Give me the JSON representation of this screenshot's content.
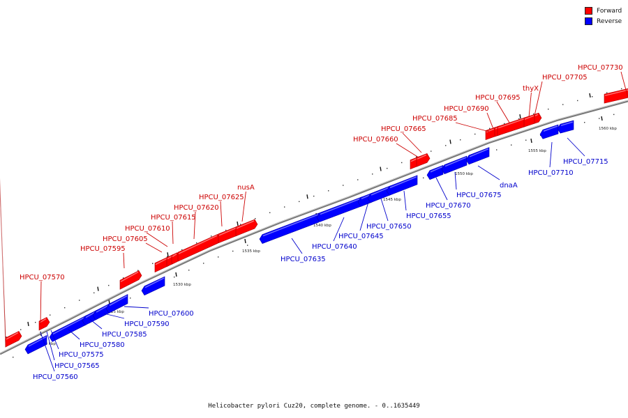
{
  "caption": "Helicobacter pylori Cuz20, complete genome. - 0..1635449",
  "legend": [
    {
      "label": "Forward",
      "color": "#ff0000"
    },
    {
      "label": "Reverse",
      "color": "#0000ff"
    }
  ],
  "colors": {
    "forward": "#ff0000",
    "reverse": "#0000ff",
    "forward_label": "#cc0000",
    "reverse_label": "#0000cc",
    "backbone": "#777777"
  },
  "scale_labels": [
    "1520 kbp",
    "1525 kbp",
    "1530 kbp",
    "1535 kbp",
    "1540 kbp",
    "1545 kbp",
    "1550 kbp",
    "1555 kbp",
    "1560 kbp"
  ],
  "forward_labels": [
    "HPCU_07570",
    "HPCU_07595",
    "HPCU_07605",
    "HPCU_07610",
    "HPCU_07615",
    "HPCU_07620",
    "HPCU_07625",
    "nusA",
    "HPCU_07660",
    "HPCU_07665",
    "HPCU_07685",
    "HPCU_07690",
    "HPCU_07695",
    "thyX",
    "HPCU_07705",
    "HPCU_07730"
  ],
  "reverse_labels": [
    "HPCU_07560",
    "HPCU_07565",
    "HPCU_07575",
    "HPCU_07580",
    "HPCU_07585",
    "HPCU_07590",
    "HPCU_07600",
    "HPCU_07635",
    "HPCU_07640",
    "HPCU_07645",
    "HPCU_07650",
    "HPCU_07655",
    "HPCU_07670",
    "HPCU_07675",
    "dnaA",
    "HPCU_07710",
    "HPCU_07715"
  ]
}
